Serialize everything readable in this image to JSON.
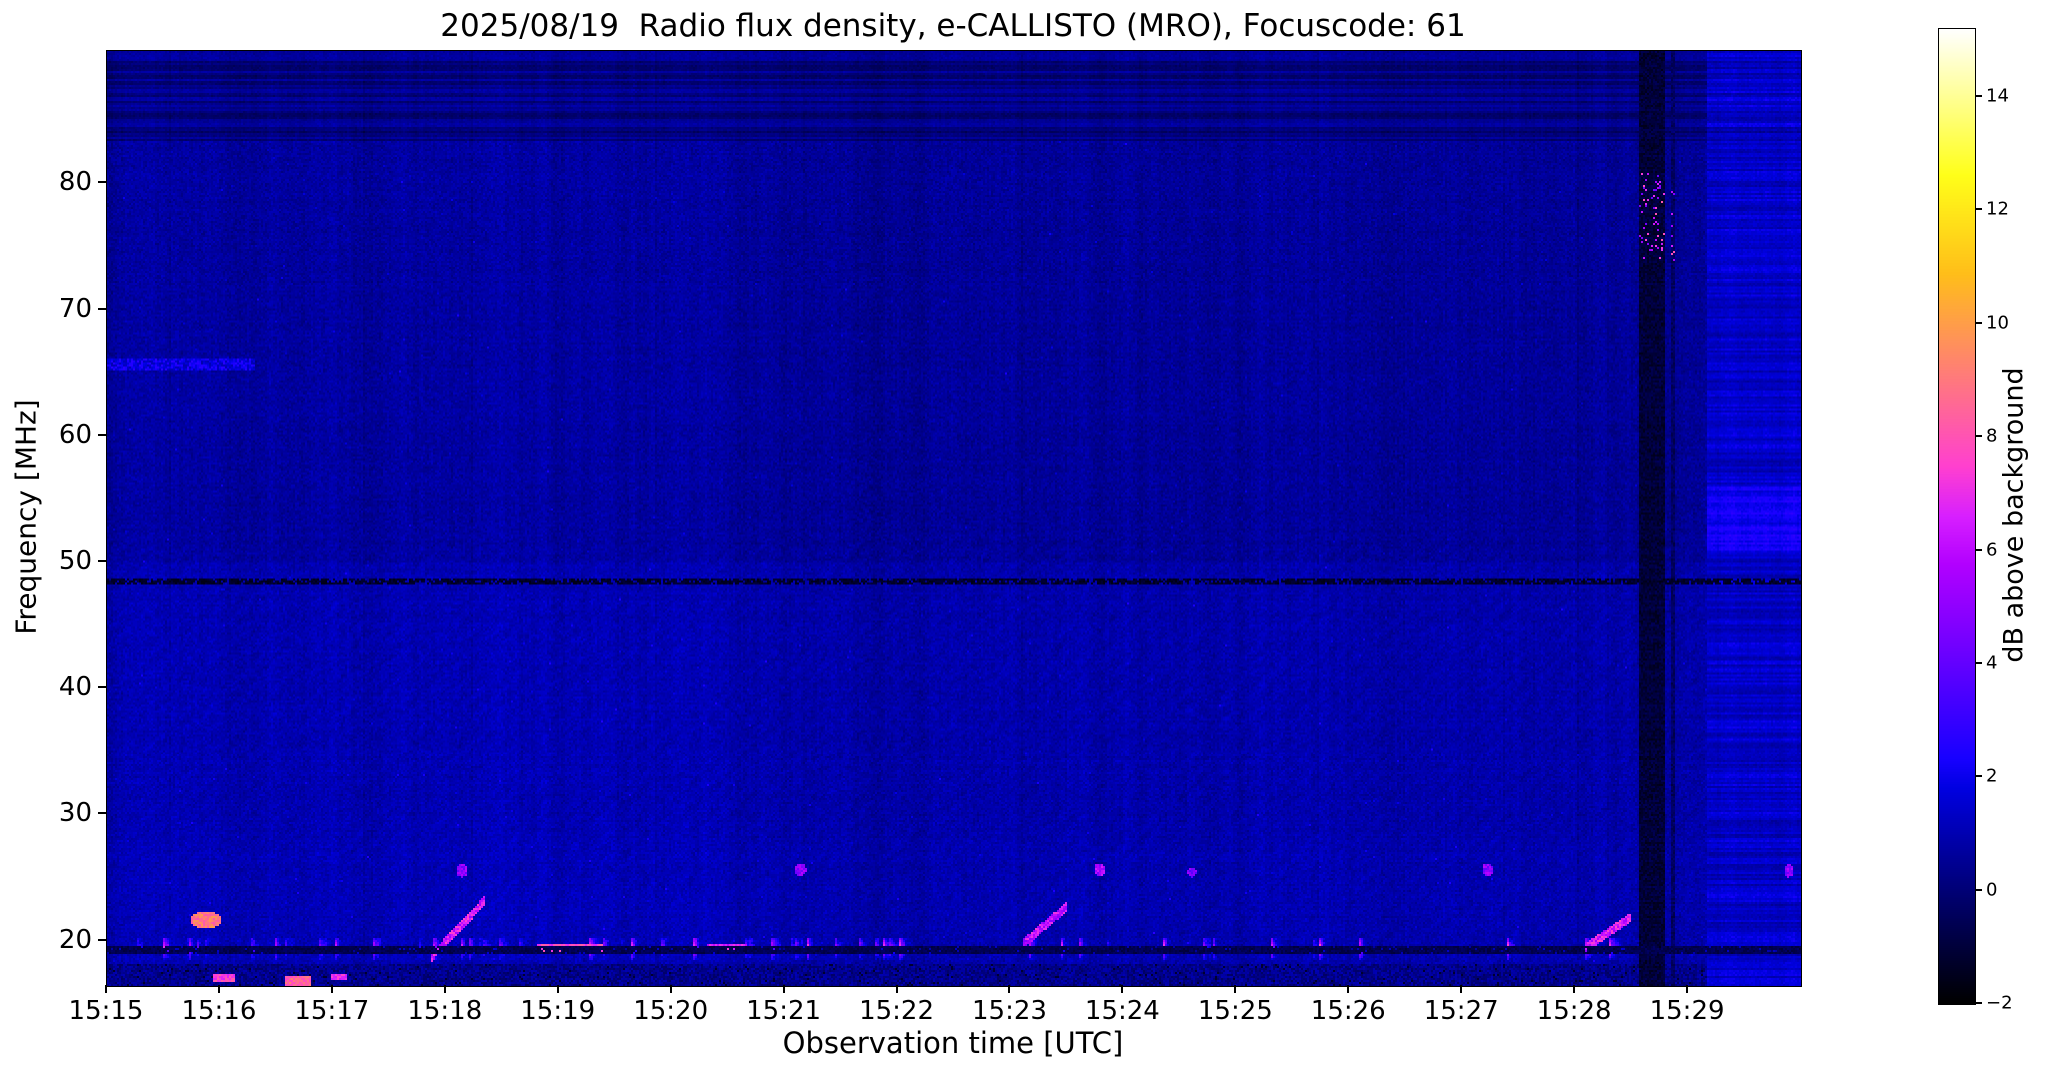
{
  "chart_data": {
    "type": "heatmap",
    "title": "2025/08/19  Radio flux density, e-CALLISTO (MRO), Focuscode: 61",
    "xlabel": "Observation time [UTC]",
    "ylabel": "Frequency [MHz]",
    "colorbar_label": "dB above background",
    "x_ticks": [
      "15:15",
      "15:16",
      "15:17",
      "15:18",
      "15:19",
      "15:20",
      "15:21",
      "15:22",
      "15:23",
      "15:24",
      "15:25",
      "15:26",
      "15:27",
      "15:28",
      "15:29"
    ],
    "x_tick_interval_seconds": 60,
    "x_range_seconds": [
      0,
      900
    ],
    "y_ticks": [
      20,
      30,
      40,
      50,
      60,
      70,
      80
    ],
    "y_range_mhz": [
      16.4,
      90.5
    ],
    "colorbar_ticks": [
      -2,
      0,
      2,
      4,
      6,
      8,
      10,
      12,
      14
    ],
    "colorbar_range": [
      -2,
      15.2
    ],
    "colormap": "gnuplot2-like: black to blue to violet to magenta to orange to yellow to white",
    "background": {
      "typical_level_db": 0.8,
      "description": "dark blue noise background; slightly brighter below 50 MHz and before 15:20:30; dark horizontally-striped band above ~83.5 MHz; noisy bottom edge below 18 MHz"
    },
    "features": [
      {
        "kind": "dark_hline",
        "name": "rfi-notch-48.6MHz",
        "f": 48.6,
        "thickness": 0.22,
        "value": -1.7,
        "dash_prob": 0.78
      },
      {
        "kind": "dark_hline",
        "name": "dark-line-19.4MHz",
        "f": 19.35,
        "thickness": 0.26,
        "value": -1.05,
        "dash_prob": 0.95
      },
      {
        "kind": "burst_band",
        "name": "rfi-burst-band-19-20MHz",
        "f_lo": 18.55,
        "f_hi": 20.3,
        "f_center": 19.6,
        "high_activity_until_s": 430
      },
      {
        "kind": "segment",
        "name": "faint-line-65.7MHz",
        "t0": 0,
        "t1": 78,
        "f": 65.7,
        "th": 0.45,
        "value": 1.8
      },
      {
        "kind": "blob",
        "name": "bright-burst-15:15:52",
        "t": 52,
        "f": 21.7,
        "w": 16,
        "h": 0.7,
        "value": 9
      },
      {
        "kind": "segment",
        "t0": 56,
        "t1": 68,
        "f": 17.1,
        "th": 0.3,
        "value": 7.5
      },
      {
        "kind": "segment",
        "t0": 94,
        "t1": 108,
        "f": 16.9,
        "th": 0.35,
        "value": 8.5
      },
      {
        "kind": "segment",
        "t0": 118,
        "t1": 127,
        "f": 17.2,
        "th": 0.3,
        "value": 7
      },
      {
        "kind": "streak",
        "name": "drifting-burst-15:18",
        "t0": 172,
        "t1": 200,
        "f0": 18.8,
        "f1": 23.2,
        "value": 6.5
      },
      {
        "kind": "blob",
        "t": 188,
        "f": 25.6,
        "w": 6,
        "h": 0.5,
        "value": 5
      },
      {
        "kind": "segment",
        "name": "bright-segment-15:19",
        "t0": 228,
        "t1": 263,
        "f": 19.5,
        "th": 0.32,
        "value": 7.5
      },
      {
        "kind": "segment",
        "t0": 318,
        "t1": 339,
        "f": 19.5,
        "th": 0.3,
        "value": 6.5
      },
      {
        "kind": "blob",
        "t": 368,
        "f": 25.7,
        "w": 6,
        "h": 0.5,
        "value": 5
      },
      {
        "kind": "streak",
        "name": "drifting-burst-15:23",
        "t0": 486,
        "t1": 509,
        "f0": 19.8,
        "f1": 22.7,
        "value": 6
      },
      {
        "kind": "blob",
        "t": 527,
        "f": 25.7,
        "w": 6,
        "h": 0.5,
        "value": 5.5
      },
      {
        "kind": "blob",
        "t": 576,
        "f": 25.5,
        "w": 5,
        "h": 0.4,
        "value": 4.5
      },
      {
        "kind": "blob",
        "t": 733,
        "f": 25.7,
        "w": 6,
        "h": 0.5,
        "value": 5
      },
      {
        "kind": "streak",
        "name": "drifting-burst-15:28",
        "t0": 786,
        "t1": 809,
        "f0": 19.6,
        "f1": 21.9,
        "value": 6.5
      },
      {
        "kind": "blob",
        "t": 893,
        "f": 25.6,
        "w": 5,
        "h": 0.5,
        "value": 5
      },
      {
        "kind": "dark_vband",
        "name": "data-gap-15:28:33",
        "t0": 813,
        "t1": 827,
        "value": -1.5
      },
      {
        "kind": "dark_vband",
        "t0": 830,
        "t1": 833,
        "value": -0.8
      },
      {
        "kind": "bright_region",
        "name": "bright-band-after-15:29",
        "t0": 850,
        "t1": 900,
        "base": 1.3,
        "stripe": 0.9,
        "boost_f_lo": 51,
        "boost_f_hi": 56,
        "boost": 0.7
      }
    ]
  }
}
